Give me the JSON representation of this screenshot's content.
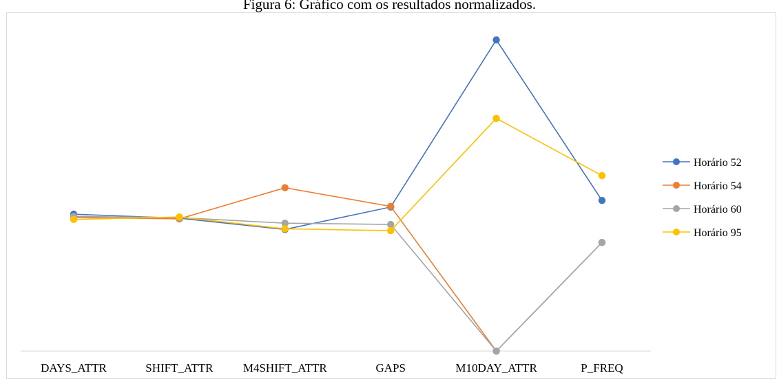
{
  "caption": "Figura 6: Gráfico com os resultados normalizados.",
  "chart_data": {
    "type": "line",
    "title": "",
    "xlabel": "",
    "ylabel": "",
    "categories": [
      "DAYS_ATTR",
      "SHIFT_ATTR",
      "M4SHIFT_ATTR",
      "GAPS",
      "M10DAY_ATTR",
      "P_FREQ"
    ],
    "ylim": [
      0,
      100
    ],
    "grid": false,
    "legend_position": "right",
    "series": [
      {
        "name": "Horário 52",
        "color": "#4472C4",
        "values": [
          44.0,
          42.7,
          39.1,
          46.3,
          100.0,
          48.4
        ]
      },
      {
        "name": "Horário 54",
        "color": "#ED7D31",
        "values": [
          42.9,
          42.5,
          52.5,
          46.5,
          0.0,
          34.9
        ]
      },
      {
        "name": "Horário 60",
        "color": "#A5A5A5",
        "values": [
          43.3,
          42.9,
          41.1,
          40.7,
          0.0,
          34.9
        ]
      },
      {
        "name": "Horário 95",
        "color": "#FFC000",
        "values": [
          42.3,
          43.1,
          39.3,
          38.7,
          74.8,
          56.4
        ]
      }
    ]
  }
}
